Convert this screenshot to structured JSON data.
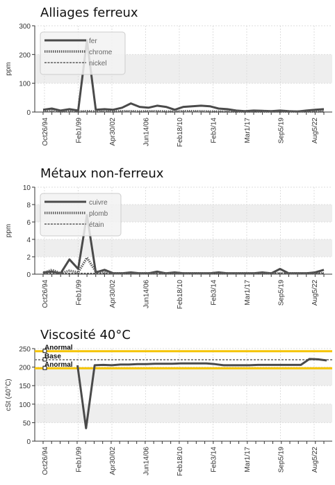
{
  "colors": {
    "series_main": "#4a4a4a",
    "series_dotted": "#5a5a5a",
    "limit_line": "#f5c400",
    "base_line": "#888888",
    "band": "#eeeeee",
    "grid": "#dddddd",
    "axis": "#333333"
  },
  "chart_data": [
    {
      "type": "line",
      "title": "Alliages ferreux",
      "ylabel": "ppm",
      "ylim": [
        0,
        300
      ],
      "yticks": [
        0,
        100,
        200,
        300
      ],
      "xticks": [
        "Oct26/94",
        "Feb1/99",
        "Apr30/02",
        "Jun14/06",
        "Feb18/10",
        "Feb3/14",
        "Mar1/17",
        "Sep5/19",
        "Aug5/22"
      ],
      "legend_position": "top-left",
      "grid": true,
      "series": [
        {
          "name": "fer",
          "style": "solid",
          "values": [
            8,
            12,
            5,
            10,
            5,
            250,
            8,
            10,
            8,
            15,
            30,
            18,
            15,
            22,
            18,
            8,
            18,
            20,
            22,
            20,
            12,
            10,
            5,
            3,
            5,
            4,
            3,
            5,
            3,
            2,
            5,
            8,
            10
          ]
        },
        {
          "name": "chrome",
          "style": "dotted",
          "values": [
            3,
            4,
            2,
            3,
            2,
            3,
            2,
            3,
            2,
            3,
            3,
            2,
            3,
            3,
            2,
            2,
            3,
            3,
            3,
            2,
            2,
            2,
            2,
            2,
            2,
            2,
            2,
            2,
            2,
            2,
            2,
            2,
            2
          ]
        },
        {
          "name": "nickel",
          "style": "dashed",
          "values": [
            1,
            1,
            1,
            1,
            1,
            1,
            1,
            1,
            1,
            1,
            1,
            1,
            1,
            1,
            1,
            1,
            1,
            1,
            1,
            1,
            1,
            1,
            1,
            1,
            1,
            1,
            1,
            1,
            1,
            1,
            1,
            1,
            1
          ]
        }
      ]
    },
    {
      "type": "line",
      "title": "Métaux non-ferreux",
      "ylabel": "ppm",
      "ylim": [
        0,
        10
      ],
      "yticks": [
        0,
        2,
        4,
        6,
        8,
        10
      ],
      "xticks": [
        "Oct26/94",
        "Feb1/99",
        "Apr30/02",
        "Jun14/06",
        "Feb18/10",
        "Feb3/14",
        "Mar1/17",
        "Sep5/19",
        "Aug5/22"
      ],
      "legend_position": "top-left",
      "grid": true,
      "series": [
        {
          "name": "cuivre",
          "style": "solid",
          "values": [
            0.2,
            0.3,
            0.1,
            1.7,
            0.6,
            6.8,
            0.2,
            0.5,
            0.1,
            0.1,
            0.2,
            0.1,
            0.1,
            0.3,
            0.1,
            0.2,
            0.1,
            0.1,
            0.1,
            0.1,
            0.2,
            0.1,
            0.1,
            0.1,
            0.1,
            0.2,
            0.1,
            0.6,
            0.1,
            0.1,
            0.1,
            0.2,
            0.5
          ]
        },
        {
          "name": "plomb",
          "style": "dotted",
          "values": [
            0.1,
            0.5,
            0.1,
            0.4,
            0.2,
            1.9,
            0.3,
            0.2,
            0.1,
            0.1,
            0.1,
            0.1,
            0.1,
            0.1,
            0.1,
            0.1,
            0.1,
            0.1,
            0.1,
            0.1,
            0.1,
            0.1,
            0.1,
            0.1,
            0.1,
            0.1,
            0.1,
            0.1,
            0.1,
            0.1,
            0.1,
            0.1,
            0.1
          ]
        },
        {
          "name": "étain",
          "style": "dashed",
          "values": [
            0.1,
            0.1,
            0.1,
            0.1,
            0.1,
            0.1,
            0.1,
            0.1,
            0.1,
            0.1,
            0.1,
            0.1,
            0.1,
            0.1,
            0.1,
            0.1,
            0.1,
            0.1,
            0.1,
            0.1,
            0.1,
            0.1,
            0.1,
            0.1,
            0.1,
            0.1,
            0.1,
            0.1,
            0.1,
            0.1,
            0.1,
            0.1,
            0.1
          ]
        }
      ]
    },
    {
      "type": "line",
      "title": "Viscosité 40°C",
      "ylabel": "cSt (40°C)",
      "ylim": [
        0,
        250
      ],
      "yticks": [
        0,
        50,
        100,
        150,
        200,
        250
      ],
      "xticks": [
        "Oct26/94",
        "Feb1/99",
        "Apr30/02",
        "Jun14/06",
        "Feb18/10",
        "Feb3/14",
        "Mar1/17",
        "Sep5/19",
        "Aug5/22"
      ],
      "grid": true,
      "reference_lines": [
        {
          "label": "Anormal",
          "value": 243,
          "style": "limit"
        },
        {
          "label": "Base",
          "value": 220,
          "style": "base"
        },
        {
          "label": "Anormal",
          "value": 197,
          "style": "limit"
        }
      ],
      "series": [
        {
          "name": "",
          "style": "solid",
          "values": [
            null,
            null,
            null,
            null,
            205,
            35,
            205,
            206,
            205,
            207,
            207,
            208,
            208,
            209,
            209,
            209,
            210,
            210,
            210,
            210,
            208,
            205,
            205,
            205,
            205,
            206,
            206,
            206,
            206,
            206,
            206,
            222,
            221,
            218
          ]
        }
      ]
    }
  ]
}
